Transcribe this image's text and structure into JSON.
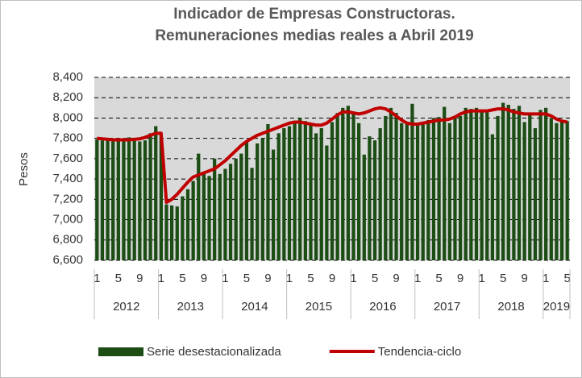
{
  "chart_data": {
    "type": "bar_line",
    "title": [
      "Indicador de Empresas Constructoras.",
      "Remuneraciones medias reales a Abril 2019"
    ],
    "ylabel": "Pesos",
    "categories": [
      "1",
      null,
      null,
      null,
      "5",
      null,
      null,
      null,
      "9",
      null,
      null,
      null,
      "1",
      null,
      null,
      null,
      "5",
      null,
      null,
      null,
      "9",
      null,
      null,
      null,
      "1",
      null,
      null,
      null,
      "5",
      null,
      null,
      null,
      "9",
      null,
      null,
      null,
      "1",
      null,
      null,
      null,
      "5",
      null,
      null,
      null,
      "9",
      null,
      null,
      null,
      "1",
      null,
      null,
      null,
      "5",
      null,
      null,
      null,
      "9",
      null,
      null,
      null,
      "1",
      null,
      null,
      null,
      "5",
      null,
      null,
      null,
      "9",
      null,
      null,
      null,
      "1",
      null,
      null,
      null,
      "5",
      null,
      null,
      null,
      "9",
      null,
      null,
      null,
      "1",
      null,
      null,
      null,
      "5"
    ],
    "years": [
      "2012",
      "2013",
      "2014",
      "2015",
      "2016",
      "2017",
      "2018",
      "2019"
    ],
    "series": [
      {
        "name": "Serie desestacionalizada",
        "kind": "bar",
        "color": "#1b4d14",
        "values": [
          7790,
          7780,
          7790,
          7770,
          7800,
          7790,
          7810,
          7800,
          7770,
          7780,
          7850,
          7920,
          7840,
          7150,
          7140,
          7130,
          7230,
          7300,
          7380,
          7650,
          7450,
          7430,
          7600,
          7450,
          7500,
          7550,
          7600,
          7650,
          7760,
          7510,
          7750,
          7800,
          7940,
          7690,
          7850,
          7900,
          7920,
          7960,
          8000,
          7970,
          7950,
          7850,
          7900,
          7730,
          7960,
          8050,
          8100,
          8120,
          8040,
          7950,
          7640,
          7820,
          7780,
          7900,
          8020,
          8100,
          8050,
          7950,
          7940,
          8140,
          7950,
          7950,
          7980,
          8000,
          8010,
          8110,
          7950,
          8000,
          8020,
          8100,
          8090,
          8100,
          8080,
          8060,
          7840,
          8020,
          8150,
          8130,
          8090,
          8120,
          7960,
          8040,
          7900,
          8080,
          8100,
          8000,
          7950,
          7980,
          7970
        ]
      },
      {
        "name": "Tendencia-ciclo",
        "kind": "line",
        "color": "#c00000",
        "values": [
          7800,
          7795,
          7790,
          7785,
          7785,
          7785,
          7785,
          7790,
          7795,
          7810,
          7830,
          7850,
          7850,
          7170,
          7200,
          7250,
          7310,
          7370,
          7420,
          7440,
          7460,
          7480,
          7500,
          7540,
          7580,
          7630,
          7680,
          7730,
          7770,
          7800,
          7830,
          7850,
          7870,
          7890,
          7910,
          7930,
          7950,
          7960,
          7960,
          7950,
          7940,
          7930,
          7930,
          7950,
          7990,
          8030,
          8060,
          8060,
          8050,
          8040,
          8050,
          8070,
          8090,
          8100,
          8090,
          8060,
          8020,
          7980,
          7950,
          7940,
          7940,
          7950,
          7960,
          7970,
          7980,
          7980,
          7990,
          8010,
          8040,
          8060,
          8070,
          8070,
          8070,
          8070,
          8080,
          8090,
          8090,
          8080,
          8060,
          8050,
          8040,
          8040,
          8040,
          8040,
          8040,
          8020,
          7990,
          7970,
          7960
        ]
      }
    ],
    "ylim": [
      6600,
      8400
    ],
    "yticks": [
      {
        "value": 6600,
        "label": "6,600"
      },
      {
        "value": 6800,
        "label": "6,800"
      },
      {
        "value": 7000,
        "label": "7,000"
      },
      {
        "value": 7200,
        "label": "7,200"
      },
      {
        "value": 7400,
        "label": "7,400"
      },
      {
        "value": 7600,
        "label": "7,600"
      },
      {
        "value": 7800,
        "label": "7,800"
      },
      {
        "value": 8000,
        "label": "8,000"
      },
      {
        "value": 8200,
        "label": "8,200"
      },
      {
        "value": 8400,
        "label": "8,400"
      }
    ],
    "grid": true,
    "legend": "bottom"
  }
}
